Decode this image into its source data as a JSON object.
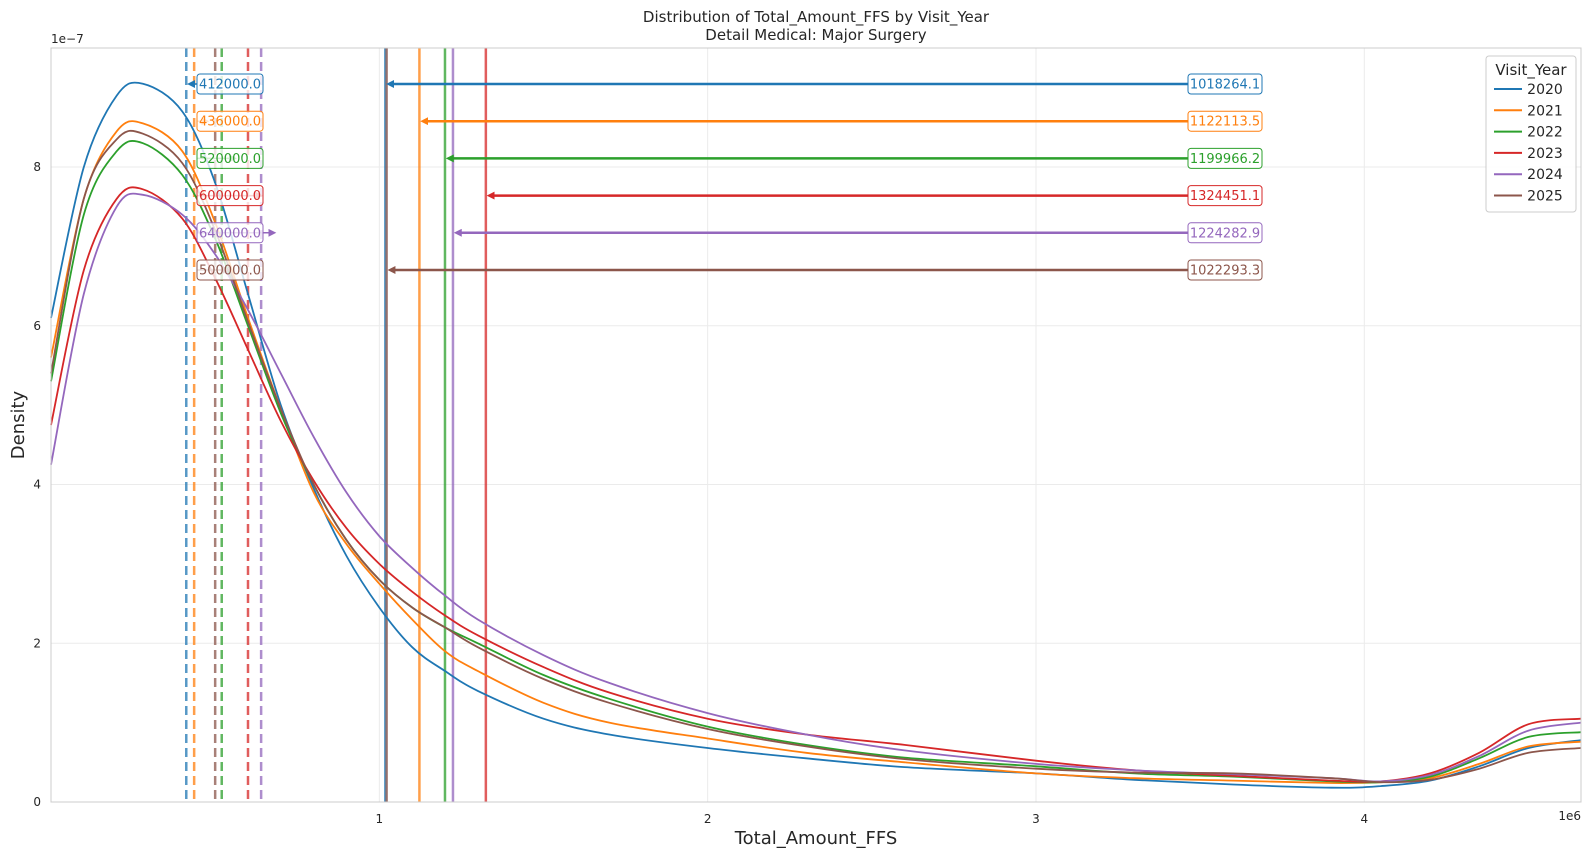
{
  "chart_data": {
    "type": "line",
    "title": "Distribution of Total_Amount_FFS by Visit_Year",
    "subtitle": "Detail Medical: Major Surgery",
    "xlabel": "Total_Amount_FFS",
    "ylabel": "Density",
    "x_offset_label": "1e6",
    "y_offset_label": "1e−7",
    "xlim": [
      0,
      4660000
    ],
    "ylim": [
      0,
      9.5
    ],
    "x_ticks": [
      {
        "value": 1000000,
        "label": "1"
      },
      {
        "value": 2000000,
        "label": "2"
      },
      {
        "value": 3000000,
        "label": "3"
      },
      {
        "value": 4000000,
        "label": "4"
      }
    ],
    "y_ticks": [
      {
        "value": 0,
        "label": "0"
      },
      {
        "value": 2,
        "label": "2"
      },
      {
        "value": 4,
        "label": "4"
      },
      {
        "value": 6,
        "label": "6"
      },
      {
        "value": 8,
        "label": "8"
      }
    ],
    "grid": true,
    "legend_title": "Visit_Year",
    "legend_position": "top-right",
    "x": [
      0,
      100000,
      200000,
      280000,
      400000,
      500000,
      600000,
      700000,
      800000,
      900000,
      1000000,
      1100000,
      1200000,
      1300000,
      1500000,
      1700000,
      2000000,
      2300000,
      2600000,
      3000000,
      3300000,
      3600000,
      3900000,
      4050000,
      4200000,
      4350000,
      4500000,
      4660000
    ],
    "series": [
      {
        "name": "2020",
        "color": "#1f77b4",
        "mean": 1018264.1,
        "median": 412000.0,
        "mean_label": "1018264.1",
        "median_label": "412000.0",
        "values": [
          6.1,
          8.0,
          8.9,
          9.05,
          8.7,
          7.8,
          6.4,
          5.0,
          3.95,
          3.1,
          2.45,
          1.95,
          1.65,
          1.4,
          1.05,
          0.85,
          0.68,
          0.55,
          0.44,
          0.36,
          0.28,
          0.22,
          0.18,
          0.2,
          0.27,
          0.45,
          0.68,
          0.78
        ]
      },
      {
        "name": "2021",
        "color": "#ff7f0e",
        "mean": 1122113.5,
        "median": 436000.0,
        "mean_label": "1122113.5",
        "median_label": "436000.0",
        "values": [
          5.6,
          7.6,
          8.45,
          8.55,
          8.2,
          7.3,
          6.1,
          4.95,
          3.9,
          3.25,
          2.75,
          2.3,
          1.9,
          1.65,
          1.25,
          1.0,
          0.8,
          0.62,
          0.5,
          0.36,
          0.3,
          0.27,
          0.24,
          0.25,
          0.3,
          0.48,
          0.7,
          0.76
        ]
      },
      {
        "name": "2022",
        "color": "#2ca02c",
        "mean": 1199966.2,
        "median": 520000.0,
        "mean_label": "1199966.2",
        "median_label": "520000.0",
        "values": [
          5.3,
          7.4,
          8.2,
          8.3,
          7.9,
          7.1,
          6.0,
          4.9,
          4.0,
          3.3,
          2.8,
          2.45,
          2.2,
          2.0,
          1.6,
          1.3,
          0.95,
          0.72,
          0.56,
          0.45,
          0.36,
          0.32,
          0.26,
          0.25,
          0.32,
          0.55,
          0.82,
          0.88
        ]
      },
      {
        "name": "2023",
        "color": "#d62728",
        "mean": 1324451.1,
        "median": 600000.0,
        "mean_label": "1324451.1",
        "median_label": "600000.0",
        "values": [
          4.75,
          6.7,
          7.6,
          7.72,
          7.35,
          6.6,
          5.7,
          4.8,
          4.05,
          3.45,
          3.0,
          2.65,
          2.35,
          2.1,
          1.7,
          1.38,
          1.05,
          0.85,
          0.72,
          0.52,
          0.4,
          0.33,
          0.27,
          0.26,
          0.36,
          0.62,
          0.98,
          1.05
        ]
      },
      {
        "name": "2024",
        "color": "#9467bd",
        "mean": 1224282.9,
        "median": 640000.0,
        "mean_label": "1224282.9",
        "median_label": "640000.0",
        "values": [
          4.25,
          6.4,
          7.5,
          7.65,
          7.4,
          6.9,
          6.2,
          5.4,
          4.6,
          3.9,
          3.35,
          2.95,
          2.6,
          2.3,
          1.85,
          1.5,
          1.12,
          0.85,
          0.65,
          0.48,
          0.4,
          0.35,
          0.3,
          0.26,
          0.34,
          0.58,
          0.9,
          1.0
        ]
      },
      {
        "name": "2025",
        "color": "#8c564b",
        "mean": 1022293.3,
        "median": 500000.0,
        "mean_label": "1022293.3",
        "median_label": "500000.0",
        "values": [
          5.4,
          7.6,
          8.35,
          8.42,
          8.05,
          7.2,
          6.05,
          4.95,
          4.0,
          3.3,
          2.8,
          2.45,
          2.2,
          1.95,
          1.55,
          1.25,
          0.92,
          0.7,
          0.54,
          0.42,
          0.37,
          0.36,
          0.3,
          0.25,
          0.28,
          0.42,
          0.62,
          0.68
        ]
      }
    ]
  }
}
